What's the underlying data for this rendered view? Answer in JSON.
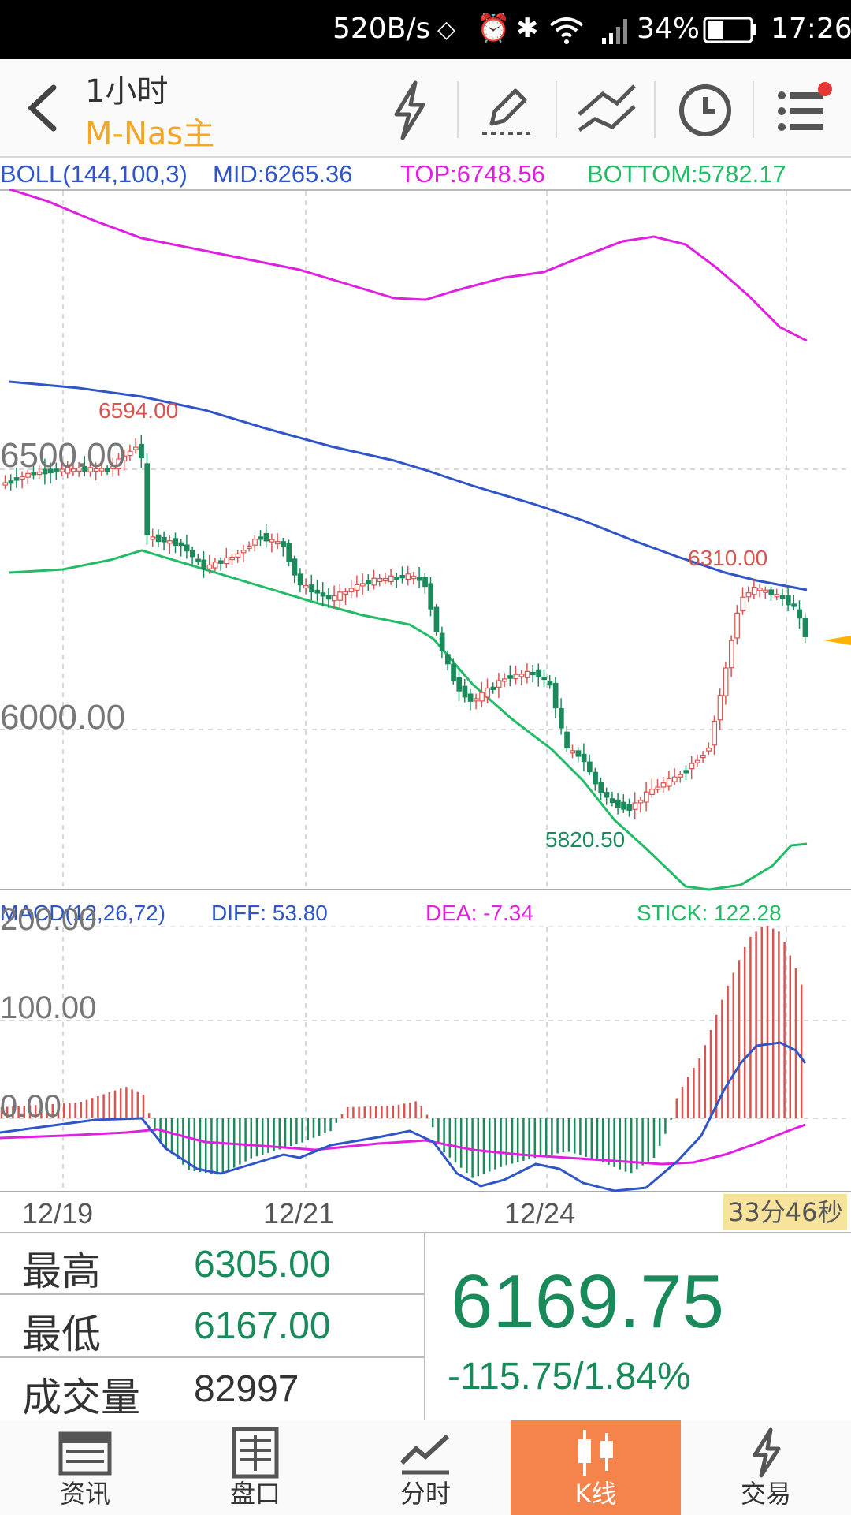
{
  "status_bar": {
    "speed": "520B/s",
    "battery": "34%",
    "time": "17:26"
  },
  "header": {
    "interval": "1小时",
    "symbol": "M-Nas主"
  },
  "boll": {
    "label": "BOLL(144,100,3)",
    "mid": "MID:6265.36",
    "top": "TOP:6748.56",
    "bottom": "BOTTOM:5782.17"
  },
  "main_chart": {
    "price_labels": [
      "6500.00",
      "6000.00"
    ],
    "annotations": {
      "high": "6594.00",
      "recent_high": "6310.00",
      "low": "5820.50"
    }
  },
  "macd": {
    "label": "MACD(12,26,72)",
    "diff": "DIFF: 53.80",
    "dea": "DEA: -7.34",
    "stick": "STICK: 122.28",
    "axis_labels": [
      "200.00",
      "100.00",
      "0.00"
    ]
  },
  "x_axis": {
    "dates": [
      "12/19",
      "12/21",
      "12/24"
    ],
    "countdown": "33分46秒"
  },
  "quote": {
    "high_label": "最高",
    "high_value": "6305.00",
    "low_label": "最低",
    "low_value": "6167.00",
    "volume_label": "成交量",
    "volume_value": "82997",
    "last_price": "6169.75",
    "change": "-115.75/1.84%"
  },
  "tabs": [
    {
      "label": "资讯",
      "icon": "news-icon"
    },
    {
      "label": "盘口",
      "icon": "orderbook-icon"
    },
    {
      "label": "分时",
      "icon": "timeshare-icon"
    },
    {
      "label": "K线",
      "icon": "candlestick-icon",
      "active": true
    },
    {
      "label": "交易",
      "icon": "trade-icon"
    }
  ],
  "colors": {
    "up": "#d9534f",
    "down": "#1a8a5a",
    "mid": "#2f55c8",
    "top": "#e020e0",
    "bottom": "#22bb66",
    "accent": "#f5844c"
  }
}
